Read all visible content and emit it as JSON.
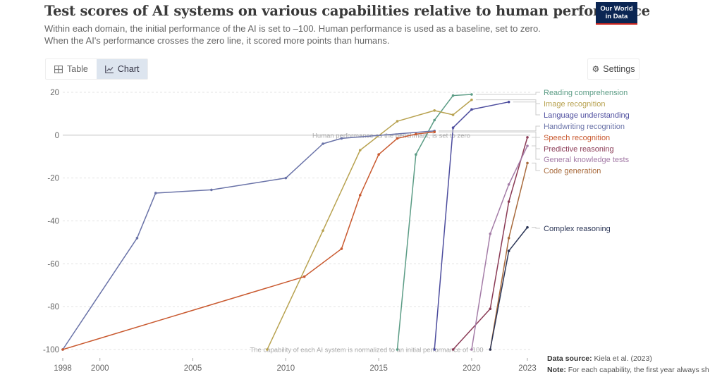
{
  "header": {
    "title": "Test scores of AI systems on various capabilities relative to human performance",
    "subtitle_line1": "Within each domain, the initial performance of the AI is set to –100. Human performance is used as a baseline, set to zero.",
    "subtitle_line2": "When the AI's performance crosses the zero line, it scored more points than humans.",
    "logo_line1": "Our World",
    "logo_line2": "in Data"
  },
  "toolbar": {
    "table_label": "Table",
    "chart_label": "Chart",
    "settings_label": "Settings",
    "active_tab": "Chart"
  },
  "footer": {
    "source_label": "Data source:",
    "source_text": "Kiela et al. (2023)",
    "note_label": "Note:",
    "note_text": "For each capability, the first year always sh"
  },
  "chart_data": {
    "type": "line",
    "title": "Test scores of AI systems on various capabilities relative to human performance",
    "xlabel": "",
    "ylabel": "",
    "xlim": [
      1998,
      2023
    ],
    "ylim": [
      -100,
      20
    ],
    "x_ticks": [
      1998,
      2000,
      2005,
      2010,
      2015,
      2020,
      2023
    ],
    "y_ticks": [
      20,
      0,
      -20,
      -40,
      -60,
      -80,
      -100
    ],
    "grid": true,
    "legend": "right (inline labels)",
    "annotations": [
      {
        "text": "Human performance as the benchmark, is set to zero",
        "y": 0
      },
      {
        "text": "The capability of each AI system is normalized to an initial performance of -100",
        "y": -100
      }
    ],
    "series": [
      {
        "name": "Reading comprehension",
        "color": "#5b9c85",
        "points": [
          [
            2016,
            -100
          ],
          [
            2017,
            -9
          ],
          [
            2018,
            7
          ],
          [
            2019,
            18.5
          ],
          [
            2020,
            19
          ]
        ]
      },
      {
        "name": "Image recognition",
        "color": "#b8a250",
        "points": [
          [
            2009,
            -100
          ],
          [
            2012,
            -44.5
          ],
          [
            2014,
            -7
          ],
          [
            2016,
            6.5
          ],
          [
            2018,
            11.5
          ],
          [
            2019,
            9.5
          ],
          [
            2020,
            16.5
          ]
        ]
      },
      {
        "name": "Language understanding",
        "color": "#4d4d9e",
        "points": [
          [
            2018,
            -100
          ],
          [
            2019,
            3.5
          ],
          [
            2020,
            12
          ],
          [
            2022,
            15.5
          ]
        ]
      },
      {
        "name": "Handwriting recognition",
        "color": "#6a73a8",
        "points": [
          [
            1998,
            -100
          ],
          [
            2002,
            -48
          ],
          [
            2003,
            -27
          ],
          [
            2006,
            -25.5
          ],
          [
            2010,
            -20
          ],
          [
            2012,
            -4
          ],
          [
            2013,
            -1.5
          ],
          [
            2018,
            2
          ]
        ]
      },
      {
        "name": "Speech recognition",
        "color": "#c9592f",
        "points": [
          [
            1998,
            -100
          ],
          [
            2011,
            -66
          ],
          [
            2013,
            -53
          ],
          [
            2014,
            -28
          ],
          [
            2015,
            -9
          ],
          [
            2016,
            -1.5
          ],
          [
            2017,
            0.5
          ],
          [
            2018,
            1.5
          ]
        ]
      },
      {
        "name": "Predictive reasoning",
        "color": "#8a3a55",
        "points": [
          [
            2019,
            -100
          ],
          [
            2021,
            -81
          ],
          [
            2022,
            -31
          ],
          [
            2023,
            -1
          ]
        ]
      },
      {
        "name": "General knowledge tests",
        "color": "#a47ca7",
        "points": [
          [
            2020,
            -100
          ],
          [
            2021,
            -46
          ],
          [
            2022,
            -23
          ],
          [
            2023,
            -5
          ]
        ]
      },
      {
        "name": "Code generation",
        "color": "#a86a3c",
        "points": [
          [
            2021,
            -100
          ],
          [
            2022,
            -48
          ],
          [
            2023,
            -13
          ]
        ]
      },
      {
        "name": "Complex reasoning",
        "color": "#2b3556",
        "points": [
          [
            2021,
            -100
          ],
          [
            2022,
            -54
          ],
          [
            2023,
            -43
          ]
        ]
      }
    ]
  }
}
